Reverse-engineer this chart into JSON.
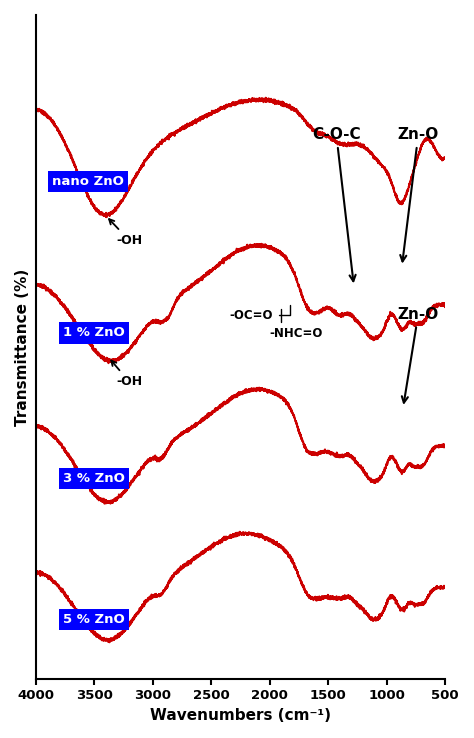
{
  "xlabel": "Wavenumbers (cm⁻¹)",
  "ylabel": "Transmittance (%)",
  "xlim": [
    4000,
    500
  ],
  "background_color": "#ffffff",
  "line_color": "#cc0000",
  "line_width": 1.4,
  "labels": [
    "nano ZnO",
    "1 % ZnO",
    "3 % ZnO",
    "5 % ZnO"
  ],
  "offsets": [
    3.0,
    2.0,
    1.0,
    0.0
  ],
  "xticks": [
    4000,
    3500,
    3000,
    2500,
    2000,
    1500,
    1000,
    500
  ],
  "xtick_labels": [
    "4000",
    "3500",
    "3000",
    "2500",
    "2000",
    "1500",
    "1000",
    "500"
  ],
  "ylim": [
    -0.2,
    4.5
  ]
}
